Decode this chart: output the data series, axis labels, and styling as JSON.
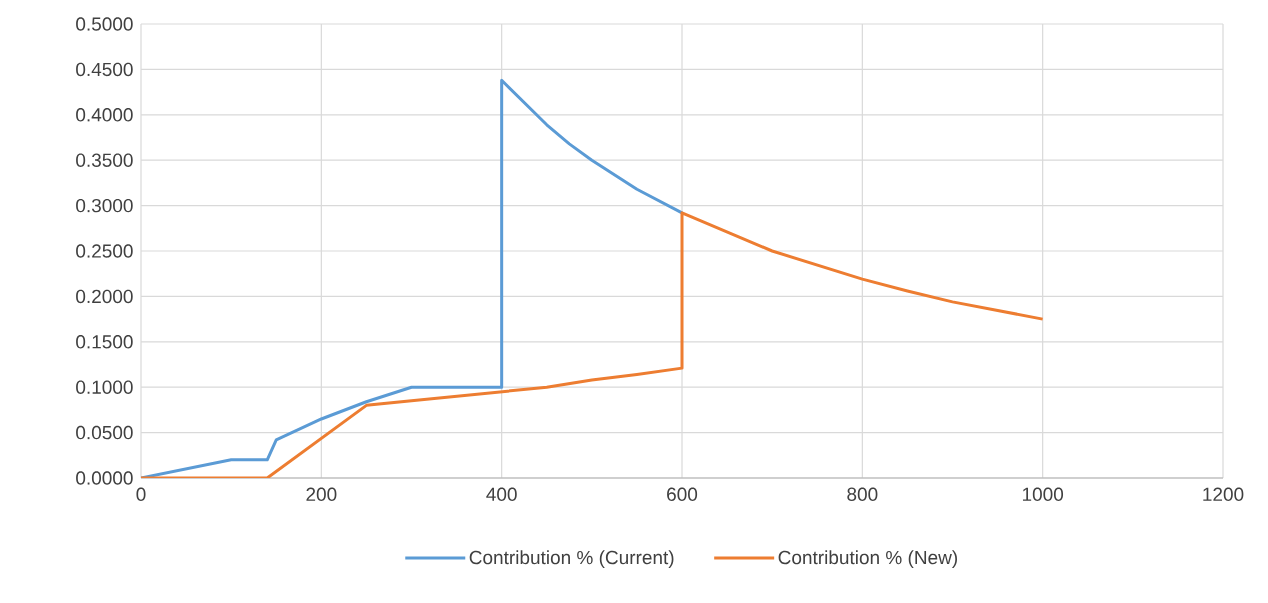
{
  "chart_data": {
    "type": "line",
    "xlim": [
      0,
      1200
    ],
    "ylim": [
      0,
      0.5
    ],
    "xticks": [
      0,
      200,
      400,
      600,
      800,
      1000,
      1200
    ],
    "yticks": [
      {
        "value": 0,
        "label": "0.0000"
      },
      {
        "value": 0.05,
        "label": "0.0500"
      },
      {
        "value": 0.1,
        "label": "0.1000"
      },
      {
        "value": 0.15,
        "label": "0.1500"
      },
      {
        "value": 0.2,
        "label": "0.2000"
      },
      {
        "value": 0.25,
        "label": "0.2500"
      },
      {
        "value": 0.3,
        "label": "0.3000"
      },
      {
        "value": 0.35,
        "label": "0.3500"
      },
      {
        "value": 0.4,
        "label": "0.4000"
      },
      {
        "value": 0.45,
        "label": "0.4500"
      },
      {
        "value": 0.5,
        "label": "0.5000"
      }
    ],
    "grid": true,
    "legend": "bottom",
    "marker": "none",
    "line_style": "solid",
    "series": [
      {
        "name": "Contribution % (Current)",
        "color": "#5b9bd5",
        "x": [
          0,
          100,
          140,
          150,
          200,
          250,
          300,
          400,
          400,
          450,
          475,
          500,
          550,
          600
        ],
        "values": [
          0,
          0.02,
          0.02,
          0.042,
          0.065,
          0.084,
          0.1,
          0.1,
          0.438,
          0.389,
          0.368,
          0.35,
          0.318,
          0.292
        ]
      },
      {
        "name": "Contribution % (New)",
        "color": "#ed7d31",
        "x": [
          0,
          140,
          250,
          300,
          400,
          450,
          500,
          550,
          600,
          600,
          700,
          800,
          850,
          900,
          1000
        ],
        "values": [
          0,
          0,
          0.08,
          0.085,
          0.095,
          0.1,
          0.108,
          0.114,
          0.121,
          0.292,
          0.25,
          0.219,
          0.206,
          0.194,
          0.175
        ]
      }
    ]
  }
}
